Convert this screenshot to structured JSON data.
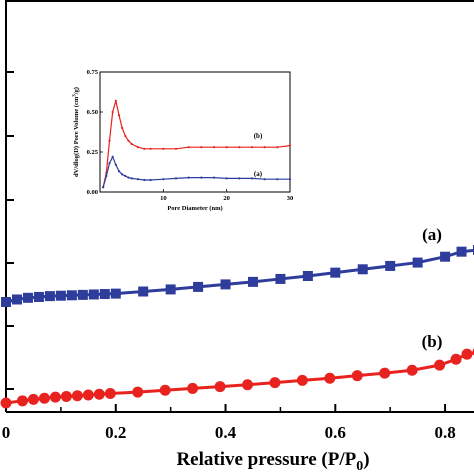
{
  "chart_data": [
    {
      "type": "scatter",
      "role": "main",
      "xlabel_main": "Relative pressure (P/P",
      "xlabel_sub": "0",
      "xlabel_end": ")",
      "ylabel": "",
      "xlim": [
        0.0,
        0.86
      ],
      "x_ticks": [
        0.0,
        0.2,
        0.4,
        0.6,
        0.8
      ],
      "x_tick_labels": [
        "0",
        "0.2",
        "0.4",
        "0.6",
        "0.8"
      ],
      "grid": false,
      "series": [
        {
          "name": "(a)",
          "color": "#2e3c9c",
          "marker": "square",
          "x": [
            0.0,
            0.02,
            0.04,
            0.06,
            0.08,
            0.1,
            0.12,
            0.14,
            0.16,
            0.18,
            0.2,
            0.25,
            0.3,
            0.35,
            0.4,
            0.45,
            0.5,
            0.55,
            0.6,
            0.65,
            0.7,
            0.75,
            0.8,
            0.83,
            0.86
          ],
          "y": [
            0.0,
            0.06,
            0.1,
            0.12,
            0.14,
            0.15,
            0.16,
            0.17,
            0.18,
            0.19,
            0.2,
            0.25,
            0.3,
            0.36,
            0.42,
            0.48,
            0.55,
            0.62,
            0.7,
            0.78,
            0.86,
            0.94,
            1.08,
            1.2,
            1.24
          ]
        },
        {
          "name": "(b)",
          "color": "#e8231f",
          "marker": "circle",
          "x": [
            0.0,
            0.03,
            0.05,
            0.07,
            0.09,
            0.11,
            0.13,
            0.15,
            0.17,
            0.19,
            0.24,
            0.29,
            0.34,
            0.39,
            0.44,
            0.49,
            0.54,
            0.59,
            0.64,
            0.69,
            0.74,
            0.79,
            0.82,
            0.84,
            0.86
          ],
          "y": [
            0.0,
            0.06,
            0.1,
            0.13,
            0.16,
            0.18,
            0.2,
            0.22,
            0.24,
            0.26,
            0.3,
            0.35,
            0.4,
            0.45,
            0.5,
            0.56,
            0.62,
            0.68,
            0.75,
            0.82,
            0.9,
            1.04,
            1.2,
            1.34,
            1.4
          ]
        }
      ]
    },
    {
      "type": "line",
      "role": "inset",
      "xlabel": "Pore Diameter (nm)",
      "ylabel_main": "dV/dlog(D) Pore Volume (cm",
      "ylabel_sup": "3",
      "ylabel_end": "/g)",
      "xlim": [
        0,
        30
      ],
      "ylim": [
        0,
        0.75
      ],
      "x_ticks": [
        10,
        20,
        30
      ],
      "x_tick_labels": [
        "10",
        "20",
        "30"
      ],
      "y_ticks": [
        0.0,
        0.25,
        0.5,
        0.75
      ],
      "y_tick_labels": [
        "0.00",
        "0.25",
        "0.50",
        "0.75"
      ],
      "grid": false,
      "series": [
        {
          "name": "(b)",
          "color": "#e8231f",
          "x": [
            0.5,
            1.0,
            1.5,
            2.0,
            2.5,
            3.0,
            3.5,
            4.0,
            4.5,
            5.0,
            6.0,
            7.0,
            8.0,
            10.0,
            12.0,
            14.0,
            16.0,
            18.0,
            20.0,
            22.0,
            24.0,
            26.0,
            28.0,
            30.0
          ],
          "y": [
            0.03,
            0.12,
            0.32,
            0.5,
            0.57,
            0.48,
            0.4,
            0.35,
            0.32,
            0.3,
            0.28,
            0.27,
            0.27,
            0.27,
            0.27,
            0.28,
            0.28,
            0.28,
            0.28,
            0.28,
            0.28,
            0.28,
            0.28,
            0.29
          ]
        },
        {
          "name": "(a)",
          "color": "#2e3c9c",
          "x": [
            0.5,
            1.0,
            1.5,
            2.0,
            2.5,
            3.0,
            3.5,
            4.0,
            4.5,
            5.0,
            6.0,
            7.0,
            8.0,
            10.0,
            12.0,
            14.0,
            16.0,
            18.0,
            20.0,
            22.0,
            24.0,
            26.0,
            28.0,
            30.0
          ],
          "y": [
            0.03,
            0.1,
            0.18,
            0.22,
            0.17,
            0.13,
            0.11,
            0.1,
            0.09,
            0.085,
            0.08,
            0.075,
            0.075,
            0.08,
            0.085,
            0.09,
            0.09,
            0.09,
            0.085,
            0.085,
            0.085,
            0.08,
            0.08,
            0.08
          ]
        }
      ]
    }
  ]
}
